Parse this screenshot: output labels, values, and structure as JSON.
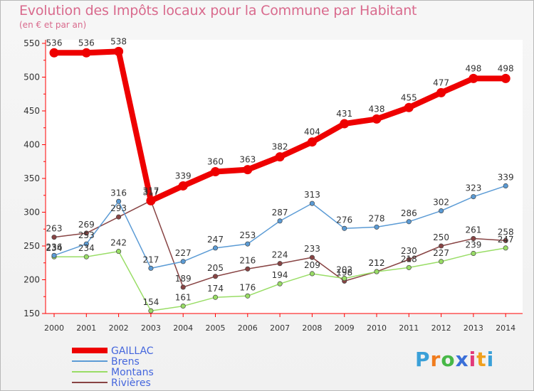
{
  "chart_data": {
    "type": "line",
    "title": "Evolution des Impôts locaux pour la Commune par Habitant",
    "subtitle": "(en € et par an)",
    "xlabel": "",
    "ylabel": "",
    "x": [
      "2000",
      "2001",
      "2002",
      "2003",
      "2004",
      "2005",
      "2006",
      "2007",
      "2008",
      "2009",
      "2010",
      "2011",
      "2012",
      "2013",
      "2014"
    ],
    "ylim": [
      150,
      550
    ],
    "yticks": [
      150,
      200,
      250,
      300,
      350,
      400,
      450,
      500,
      550
    ],
    "legend_position": "bottom-left",
    "series": [
      {
        "name": "GAILLAC",
        "color": "#ee0000",
        "values": [
          536,
          536,
          538,
          317,
          339,
          360,
          363,
          382,
          404,
          431,
          438,
          455,
          477,
          498,
          498
        ],
        "labels": [
          "536",
          "536",
          "538",
          "317",
          "339",
          "360",
          "363",
          "382",
          "404",
          "431",
          "438",
          "455",
          "477",
          "498",
          "498"
        ]
      },
      {
        "name": "Brens",
        "color": "#5b9bd5",
        "values": [
          236,
          253,
          316,
          217,
          227,
          247,
          253,
          287,
          313,
          276,
          278,
          286,
          302,
          323,
          339
        ],
        "labels": [
          "236",
          "253",
          "316",
          "217",
          "227",
          "247",
          "253",
          "287",
          "313",
          "276",
          "278",
          "286",
          "302",
          "323",
          "339"
        ]
      },
      {
        "name": "Montans",
        "color": "#99dd66",
        "values": [
          234,
          234,
          242,
          154,
          161,
          174,
          176,
          194,
          209,
          202,
          212,
          218,
          227,
          239,
          247
        ],
        "labels": [
          "234",
          "234",
          "242",
          "154",
          "161",
          "174",
          "176",
          "194",
          "209",
          "202",
          "212",
          "218",
          "227",
          "239",
          "247"
        ]
      },
      {
        "name": "Rivières",
        "color": "#884444",
        "values": [
          263,
          269,
          293,
          317,
          189,
          205,
          216,
          224,
          233,
          198,
          212,
          230,
          250,
          261,
          258
        ],
        "labels": [
          "263",
          "269",
          "293",
          "317",
          "189",
          "205",
          "216",
          "224",
          "233",
          "198",
          "212",
          "230",
          "250",
          "261",
          "258"
        ]
      }
    ]
  },
  "logo": {
    "text": "Proxiti",
    "colors": [
      "#3aa0d8",
      "#f07c1e",
      "#47b847",
      "#3a6fd8",
      "#e23a7a",
      "#f0a01e",
      "#3aa0d8"
    ]
  }
}
